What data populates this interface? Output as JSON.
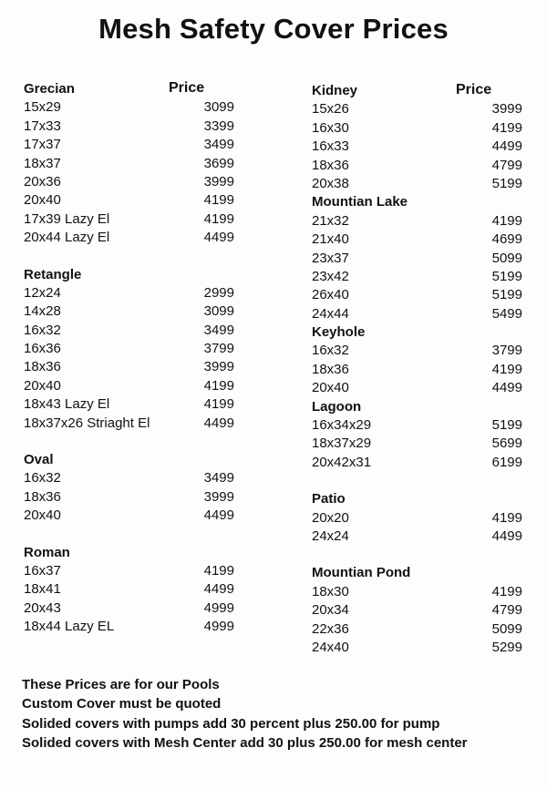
{
  "title": "Mesh Safety Cover Prices",
  "price_header": "Price",
  "left_column": [
    {
      "name": "Grecian",
      "show_price_header": true,
      "items": [
        {
          "size": "15x29",
          "price": "3099"
        },
        {
          "size": "17x33",
          "price": "3399"
        },
        {
          "size": "17x37",
          "price": "3499"
        },
        {
          "size": "18x37",
          "price": "3699"
        },
        {
          "size": "20x36",
          "price": "3999"
        },
        {
          "size": "20x40",
          "price": "4199"
        },
        {
          "size": "17x39 Lazy El",
          "price": "4199"
        },
        {
          "size": "20x44 Lazy El",
          "price": "4499"
        }
      ]
    },
    {
      "name": "Retangle",
      "items": [
        {
          "size": "12x24",
          "price": "2999"
        },
        {
          "size": "14x28",
          "price": "3099"
        },
        {
          "size": "16x32",
          "price": "3499"
        },
        {
          "size": "16x36",
          "price": "3799"
        },
        {
          "size": "18x36",
          "price": "3999"
        },
        {
          "size": "20x40",
          "price": "4199"
        },
        {
          "size": "18x43 Lazy El",
          "price": "4199"
        },
        {
          "size": "18x37x26 Striaght El",
          "price": "4499"
        }
      ]
    },
    {
      "name": "Oval",
      "items": [
        {
          "size": "16x32",
          "price": "3499"
        },
        {
          "size": "18x36",
          "price": "3999"
        },
        {
          "size": "20x40",
          "price": "4499"
        }
      ]
    },
    {
      "name": "Roman",
      "items": [
        {
          "size": "16x37",
          "price": "4199"
        },
        {
          "size": "18x41",
          "price": "4499"
        },
        {
          "size": "20x43",
          "price": "4999"
        },
        {
          "size": "18x44 Lazy EL",
          "price": "4999"
        }
      ]
    }
  ],
  "right_column": [
    {
      "name": "Kidney",
      "show_price_header": true,
      "items": [
        {
          "size": "15x26",
          "price": "3999"
        },
        {
          "size": "16x30",
          "price": "4199"
        },
        {
          "size": "16x33",
          "price": "4499"
        },
        {
          "size": "18x36",
          "price": "4799"
        },
        {
          "size": "20x38",
          "price": "5199"
        }
      ]
    },
    {
      "name": "Mountian Lake",
      "items": [
        {
          "size": "21x32",
          "price": "4199"
        },
        {
          "size": "21x40",
          "price": "4699"
        },
        {
          "size": "23x37",
          "price": "5099"
        },
        {
          "size": "23x42",
          "price": "5199"
        },
        {
          "size": "26x40",
          "price": "5199"
        },
        {
          "size": "24x44",
          "price": "5499"
        }
      ]
    },
    {
      "name": "Keyhole",
      "items": [
        {
          "size": "16x32",
          "price": "3799"
        },
        {
          "size": "18x36",
          "price": "4199"
        },
        {
          "size": "20x40",
          "price": "4499"
        }
      ]
    },
    {
      "name": "Lagoon",
      "items": [
        {
          "size": "16x34x29",
          "price": "5199"
        },
        {
          "size": "18x37x29",
          "price": "5699"
        },
        {
          "size": "20x42x31",
          "price": "6199"
        }
      ]
    },
    {
      "name": "Patio",
      "items": [
        {
          "size": "20x20",
          "price": "4199"
        },
        {
          "size": "24x24",
          "price": "4499"
        }
      ]
    },
    {
      "name": "Mountian Pond",
      "items": [
        {
          "size": "18x30",
          "price": "4199"
        },
        {
          "size": "20x34",
          "price": "4799"
        },
        {
          "size": "22x36",
          "price": "5099"
        },
        {
          "size": "24x40",
          "price": "5299"
        }
      ]
    }
  ],
  "footer_notes": [
    "These Prices are for our Pools",
    "Custom Cover must be quoted",
    "Solided covers with pumps add 30 percent plus 250.00 for pump",
    "Solided covers with Mesh Center add 30 plus 250.00 for mesh center"
  ]
}
